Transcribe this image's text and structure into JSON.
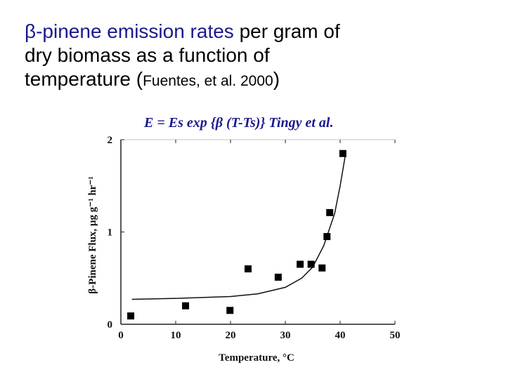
{
  "header": {
    "title_blue": "β-pinene emission rates",
    "title_rest_1": " per gram of",
    "title_line_2": "dry biomass as a function of",
    "title_line_3": "temperature (",
    "title_cite": "Fuentes, et al. 2000",
    "title_close": ")"
  },
  "formula": "E = Es exp {β (T-Ts)} Tingy et al.",
  "chart_data": {
    "type": "scatter",
    "x_label": "Temperature, °C",
    "y_label": "β-Pinene Flux, μg g⁻¹ hr⁻¹",
    "xlim": [
      0,
      50
    ],
    "xticks": [
      0,
      10,
      20,
      30,
      40,
      50
    ],
    "ylim": [
      0,
      2
    ],
    "yticks": [
      0,
      1,
      2
    ],
    "color": "#000000",
    "x": [
      1.8,
      11.8,
      19.9,
      23.2,
      28.7,
      32.7,
      34.7,
      36.7,
      37.6,
      38.1,
      40.5
    ],
    "values": [
      0.09,
      0.2,
      0.15,
      0.6,
      0.51,
      0.65,
      0.65,
      0.61,
      0.95,
      1.21,
      1.85
    ],
    "curve": {
      "x": [
        2,
        10,
        20,
        25,
        30,
        33,
        35,
        37,
        39,
        40,
        41
      ],
      "values": [
        0.27,
        0.28,
        0.3,
        0.33,
        0.4,
        0.5,
        0.62,
        0.85,
        1.2,
        1.5,
        1.85
      ]
    }
  }
}
